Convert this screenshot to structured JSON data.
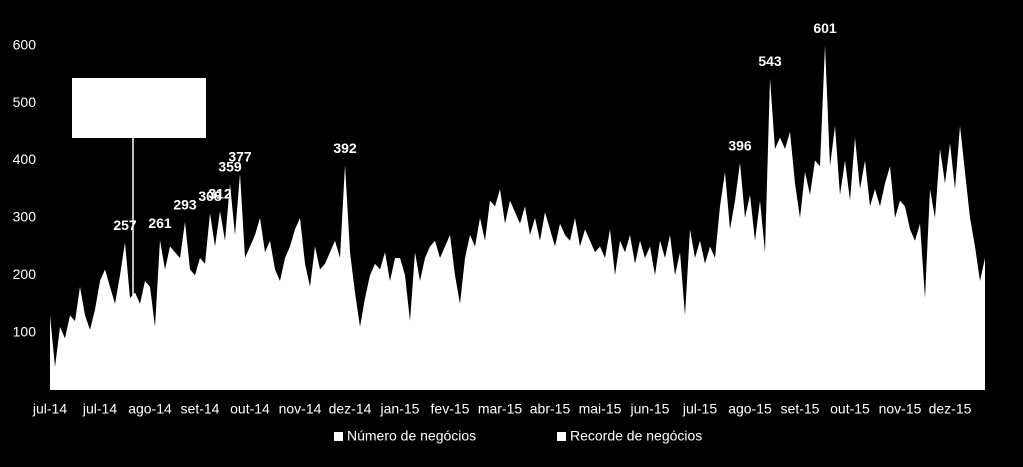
{
  "chart_data": {
    "type": "area",
    "categories": [
      "jul-14",
      null,
      null,
      null,
      null,
      null,
      null,
      null,
      null,
      null,
      "jul-14",
      null,
      null,
      null,
      null,
      null,
      null,
      null,
      null,
      null,
      "ago-14",
      null,
      null,
      null,
      null,
      null,
      null,
      null,
      null,
      null,
      "set-14",
      null,
      null,
      null,
      null,
      null,
      null,
      null,
      null,
      null,
      "out-14",
      null,
      null,
      null,
      null,
      null,
      null,
      null,
      null,
      null,
      "nov-14",
      null,
      null,
      null,
      null,
      null,
      null,
      null,
      null,
      null,
      "dez-14",
      null,
      null,
      null,
      null,
      null,
      null,
      null,
      null,
      null,
      "jan-15",
      null,
      null,
      null,
      null,
      null,
      null,
      null,
      null,
      null,
      "fev-15",
      null,
      null,
      null,
      null,
      null,
      null,
      null,
      null,
      null,
      "mar-15",
      null,
      null,
      null,
      null,
      null,
      null,
      null,
      null,
      null,
      "abr-15",
      null,
      null,
      null,
      null,
      null,
      null,
      null,
      null,
      null,
      "mai-15",
      null,
      null,
      null,
      null,
      null,
      null,
      null,
      null,
      null,
      "jun-15",
      null,
      null,
      null,
      null,
      null,
      null,
      null,
      null,
      null,
      "jul-15",
      null,
      null,
      null,
      null,
      null,
      null,
      null,
      null,
      null,
      "ago-15",
      null,
      null,
      null,
      null,
      null,
      null,
      null,
      null,
      null,
      "set-15",
      null,
      null,
      null,
      null,
      null,
      null,
      null,
      null,
      null,
      "out-15",
      null,
      null,
      null,
      null,
      null,
      null,
      null,
      null,
      null,
      "nov-15",
      null,
      null,
      null,
      null,
      null,
      null,
      null,
      null,
      null,
      "dez-15",
      null,
      null,
      null,
      null,
      null,
      null,
      null
    ],
    "series": [
      {
        "name": "Número de negócios",
        "color": "#ffffff",
        "values": [
          130,
          40,
          110,
          90,
          130,
          120,
          180,
          130,
          105,
          140,
          190,
          210,
          180,
          150,
          200,
          257,
          160,
          170,
          150,
          190,
          180,
          110,
          261,
          210,
          250,
          240,
          230,
          293,
          210,
          200,
          230,
          220,
          308,
          250,
          312,
          260,
          359,
          270,
          377,
          230,
          250,
          270,
          300,
          240,
          260,
          210,
          190,
          230,
          250,
          280,
          300,
          220,
          180,
          250,
          210,
          220,
          240,
          260,
          230,
          392,
          240,
          170,
          110,
          160,
          200,
          220,
          210,
          240,
          190,
          230,
          230,
          200,
          120,
          240,
          190,
          230,
          250,
          260,
          230,
          250,
          270,
          200,
          150,
          230,
          270,
          250,
          300,
          260,
          330,
          320,
          350,
          290,
          330,
          310,
          290,
          320,
          270,
          300,
          260,
          310,
          280,
          250,
          290,
          270,
          260,
          300,
          250,
          280,
          260,
          240,
          250,
          230,
          280,
          200,
          260,
          240,
          270,
          220,
          260,
          230,
          250,
          200,
          260,
          230,
          270,
          200,
          240,
          130,
          280,
          230,
          260,
          220,
          250,
          230,
          320,
          380,
          280,
          330,
          396,
          300,
          340,
          260,
          330,
          240,
          543,
          420,
          440,
          420,
          450,
          360,
          300,
          380,
          340,
          400,
          390,
          601,
          390,
          460,
          340,
          400,
          330,
          440,
          350,
          400,
          320,
          350,
          320,
          360,
          390,
          300,
          330,
          320,
          280,
          260,
          290,
          160,
          350,
          300,
          420,
          360,
          430,
          350,
          460,
          380,
          300,
          250,
          190,
          230
        ]
      },
      {
        "name": "Recorde de negócios",
        "color": "#ffffff",
        "values": [
          null,
          null,
          null,
          null,
          null,
          null,
          null,
          null,
          null,
          null,
          null,
          null,
          null,
          null,
          null,
          257,
          null,
          null,
          null,
          null,
          null,
          null,
          261,
          null,
          null,
          null,
          null,
          293,
          null,
          null,
          null,
          null,
          308,
          null,
          312,
          null,
          359,
          null,
          377,
          null,
          null,
          null,
          null,
          null,
          null,
          null,
          null,
          null,
          null,
          null,
          null,
          null,
          null,
          null,
          null,
          null,
          null,
          null,
          null,
          392,
          null,
          null,
          null,
          null,
          null,
          null,
          null,
          null,
          null,
          null,
          null,
          null,
          null,
          null,
          null,
          null,
          null,
          null,
          null,
          null,
          null,
          null,
          null,
          null,
          null,
          null,
          null,
          null,
          null,
          null,
          null,
          null,
          null,
          null,
          null,
          null,
          null,
          null,
          null,
          null,
          null,
          null,
          null,
          null,
          null,
          null,
          null,
          null,
          null,
          null,
          null,
          null,
          null,
          null,
          null,
          null,
          null,
          null,
          null,
          null,
          null,
          null,
          null,
          null,
          null,
          null,
          null,
          null,
          null,
          null,
          null,
          null,
          null,
          null,
          null,
          null,
          null,
          null,
          396,
          null,
          null,
          null,
          null,
          null,
          543,
          null,
          null,
          null,
          null,
          null,
          null,
          null,
          null,
          null,
          null,
          601,
          null,
          null,
          null,
          null,
          null,
          null,
          null,
          null,
          null,
          null,
          null,
          null,
          null,
          null,
          null,
          null,
          null,
          null,
          null,
          null,
          null,
          null,
          null,
          null,
          null,
          null,
          null,
          null,
          null,
          null,
          null,
          null
        ]
      }
    ],
    "ylim": [
      0,
      650
    ],
    "yticks": [
      100,
      200,
      300,
      400,
      500,
      600
    ]
  }
}
